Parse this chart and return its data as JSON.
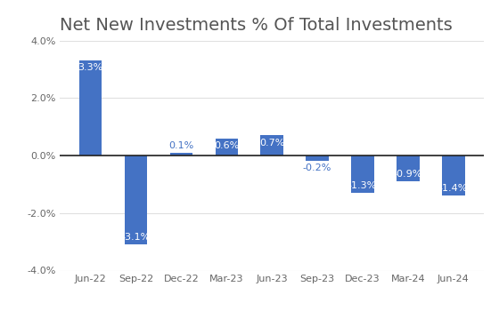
{
  "title": "Net New Investments % Of Total Investments",
  "categories": [
    "Jun-22",
    "Sep-22",
    "Dec-22",
    "Mar-23",
    "Jun-23",
    "Sep-23",
    "Dec-23",
    "Mar-24",
    "Jun-24"
  ],
  "values": [
    3.3,
    -3.1,
    0.1,
    0.6,
    0.7,
    -0.2,
    -1.3,
    -0.9,
    -1.4
  ],
  "bar_color": "#4472c4",
  "background_color": "#ffffff",
  "ylim": [
    -4.0,
    4.0
  ],
  "yticks": [
    -4.0,
    -2.0,
    0.0,
    2.0,
    4.0
  ],
  "title_fontsize": 14,
  "label_fontsize": 8,
  "tick_fontsize": 8,
  "bar_width": 0.5,
  "small_threshold": 0.25
}
